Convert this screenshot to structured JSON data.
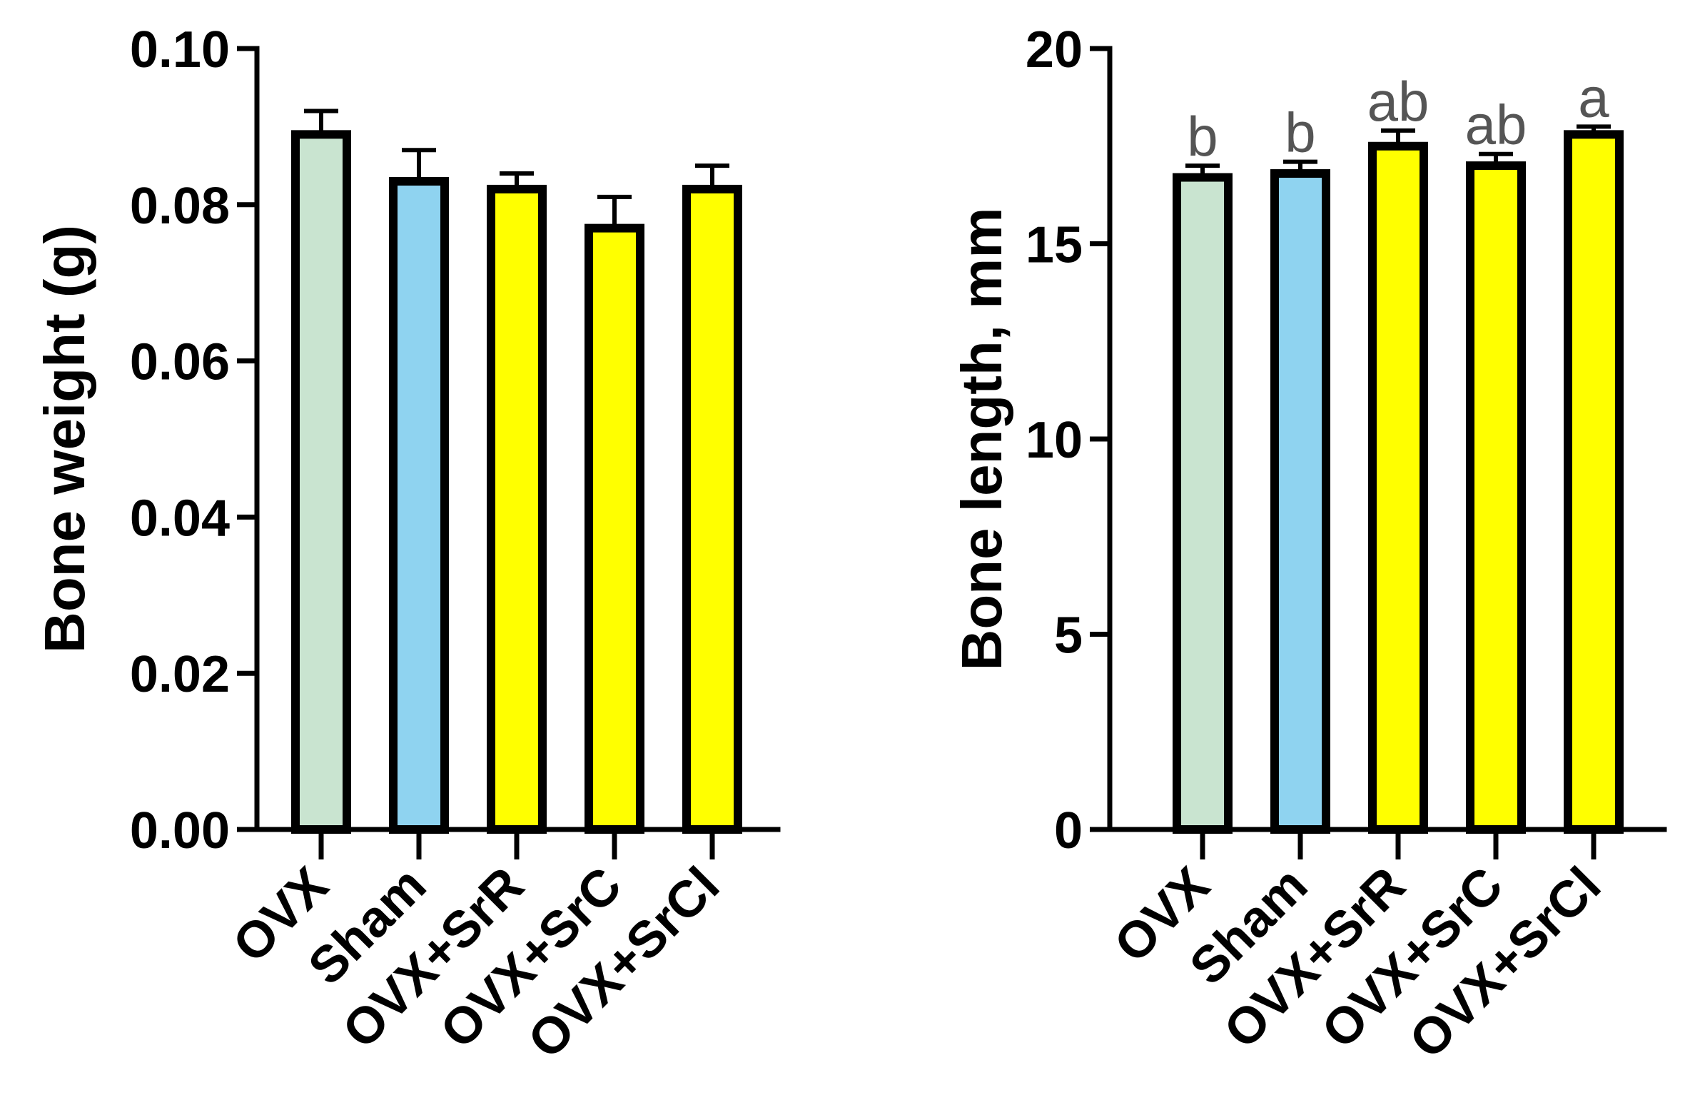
{
  "chart_data": [
    {
      "type": "bar",
      "ylabel": "Bone weight (g)",
      "categories": [
        "OVX",
        "Sham",
        "OVX+SrR",
        "OVX+SrC",
        "OVX+SrCl"
      ],
      "values": [
        0.089,
        0.083,
        0.082,
        0.077,
        0.082
      ],
      "errors": [
        0.003,
        0.004,
        0.002,
        0.004,
        0.003
      ],
      "colors": [
        "#c9e4d0",
        "#8fd3f0",
        "#ffff00",
        "#ffff00",
        "#ffff00"
      ],
      "ylim": [
        0,
        0.1
      ],
      "yticks": [
        "0.00",
        "0.02",
        "0.04",
        "0.06",
        "0.08",
        "0.10"
      ],
      "significance": []
    },
    {
      "type": "bar",
      "ylabel": "Bone length, mm",
      "categories": [
        "OVX",
        "Sham",
        "OVX+SrR",
        "OVX+SrC",
        "OVX+SrCl"
      ],
      "values": [
        16.7,
        16.8,
        17.5,
        17.0,
        17.8
      ],
      "errors": [
        0.3,
        0.3,
        0.4,
        0.3,
        0.2
      ],
      "colors": [
        "#c9e4d0",
        "#8fd3f0",
        "#ffff00",
        "#ffff00",
        "#ffff00"
      ],
      "ylim": [
        0,
        20
      ],
      "yticks": [
        "0",
        "5",
        "10",
        "15",
        "20"
      ],
      "significance": [
        "b",
        "b",
        "ab",
        "ab",
        "a"
      ]
    }
  ]
}
